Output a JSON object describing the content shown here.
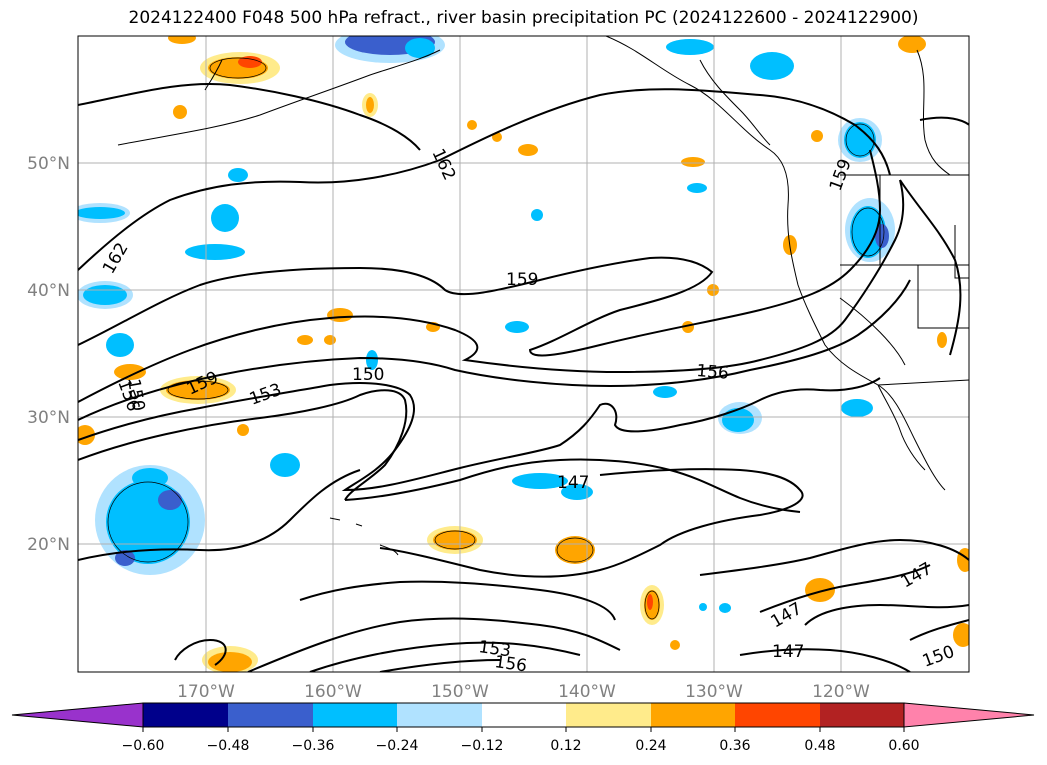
{
  "title": "2024122400 F048 500 hPa refract., river basin precipitation PC (2024122600 - 2024122900)",
  "lat_labels": [
    "50°N",
    "40°N",
    "30°N",
    "20°N"
  ],
  "lon_labels": [
    "170°W",
    "160°W",
    "150°W",
    "140°W",
    "130°W",
    "120°W"
  ],
  "contour_labels": [
    "162",
    "162",
    "159",
    "159",
    "156",
    "159",
    "153",
    "150",
    "156",
    "147",
    "147",
    "147",
    "147",
    "150",
    "153",
    "156",
    "150"
  ],
  "colorbar": {
    "ticks": [
      "−0.60",
      "−0.48",
      "−0.36",
      "−0.24",
      "−0.12",
      "0.12",
      "0.24",
      "0.36",
      "0.48",
      "0.60"
    ],
    "colors": [
      "#9932cc",
      "#00008b",
      "#3a5fcd",
      "#00bfff",
      "#b0e2ff",
      "#ffffff",
      "#ffeb8b",
      "#ffa500",
      "#ff4500",
      "#b22222",
      "#ff82ab"
    ]
  }
}
